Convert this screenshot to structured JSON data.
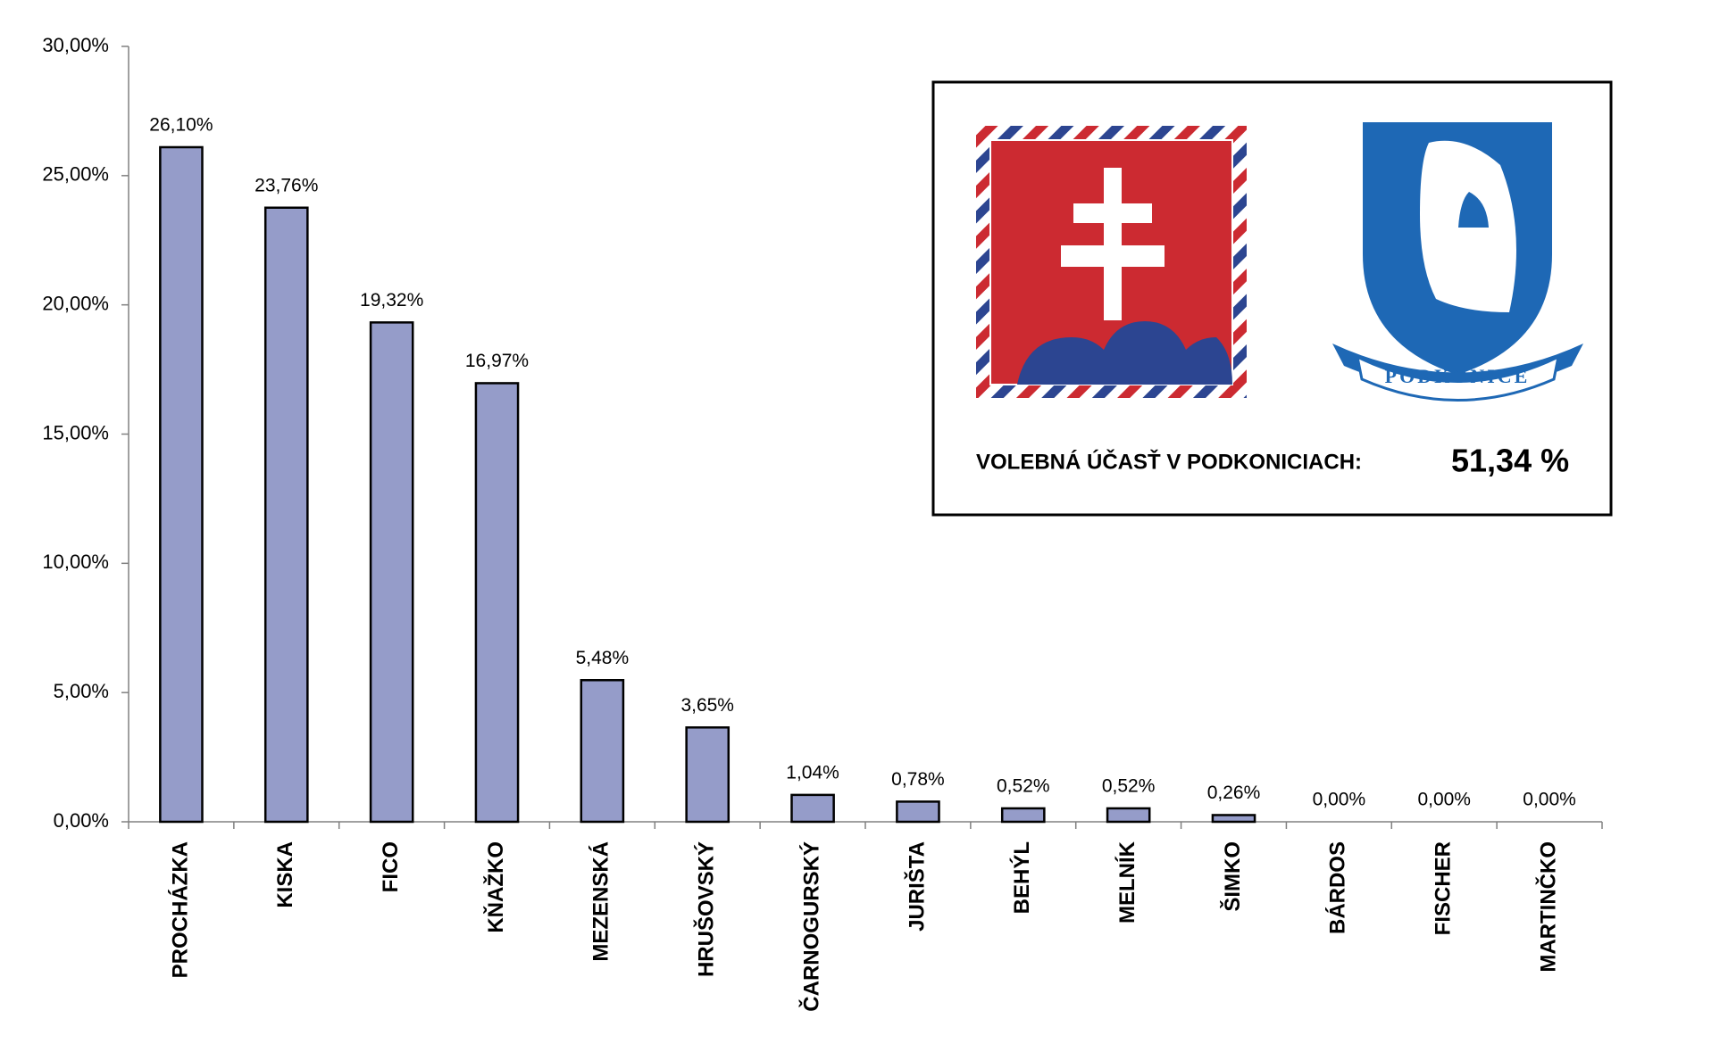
{
  "chart_data": {
    "type": "bar",
    "categories": [
      "PROCHÁZKA",
      "KISKA",
      "FICO",
      "KŇAŽKO",
      "MEZENSKÁ",
      "HRUŠOVSKÝ",
      "ČARNOGURSKÝ",
      "JURIŠTA",
      "BEHÝL",
      "MELNÍK",
      "ŠIMKO",
      "BÁRDOS",
      "FISCHER",
      "MARTINČKO"
    ],
    "values": [
      26.1,
      23.76,
      19.32,
      16.97,
      5.48,
      3.65,
      1.04,
      0.78,
      0.52,
      0.52,
      0.26,
      0.0,
      0.0,
      0.0
    ],
    "value_labels": [
      "26,10%",
      "23,76%",
      "19,32%",
      "16,97%",
      "5,48%",
      "3,65%",
      "1,04%",
      "0,78%",
      "0,52%",
      "0,52%",
      "0,26%",
      "0,00%",
      "0,00%",
      "0,00%"
    ],
    "color": "#959cc9",
    "ylim": [
      0,
      30
    ],
    "yticks": [
      {
        "value": 0,
        "label": "0,00%"
      },
      {
        "value": 5,
        "label": "5,00%"
      },
      {
        "value": 10,
        "label": "10,00%"
      },
      {
        "value": 15,
        "label": "15,00%"
      },
      {
        "value": 20,
        "label": "20,00%"
      },
      {
        "value": 25,
        "label": "25,00%"
      },
      {
        "value": 30,
        "label": "30,00%"
      }
    ],
    "grid": false,
    "inset": {
      "label": "VOLEBNÁ ÚČASŤ V PODKONICIACH:",
      "value_text": "51,34 %",
      "emblem_text": "PODKONICE"
    }
  }
}
